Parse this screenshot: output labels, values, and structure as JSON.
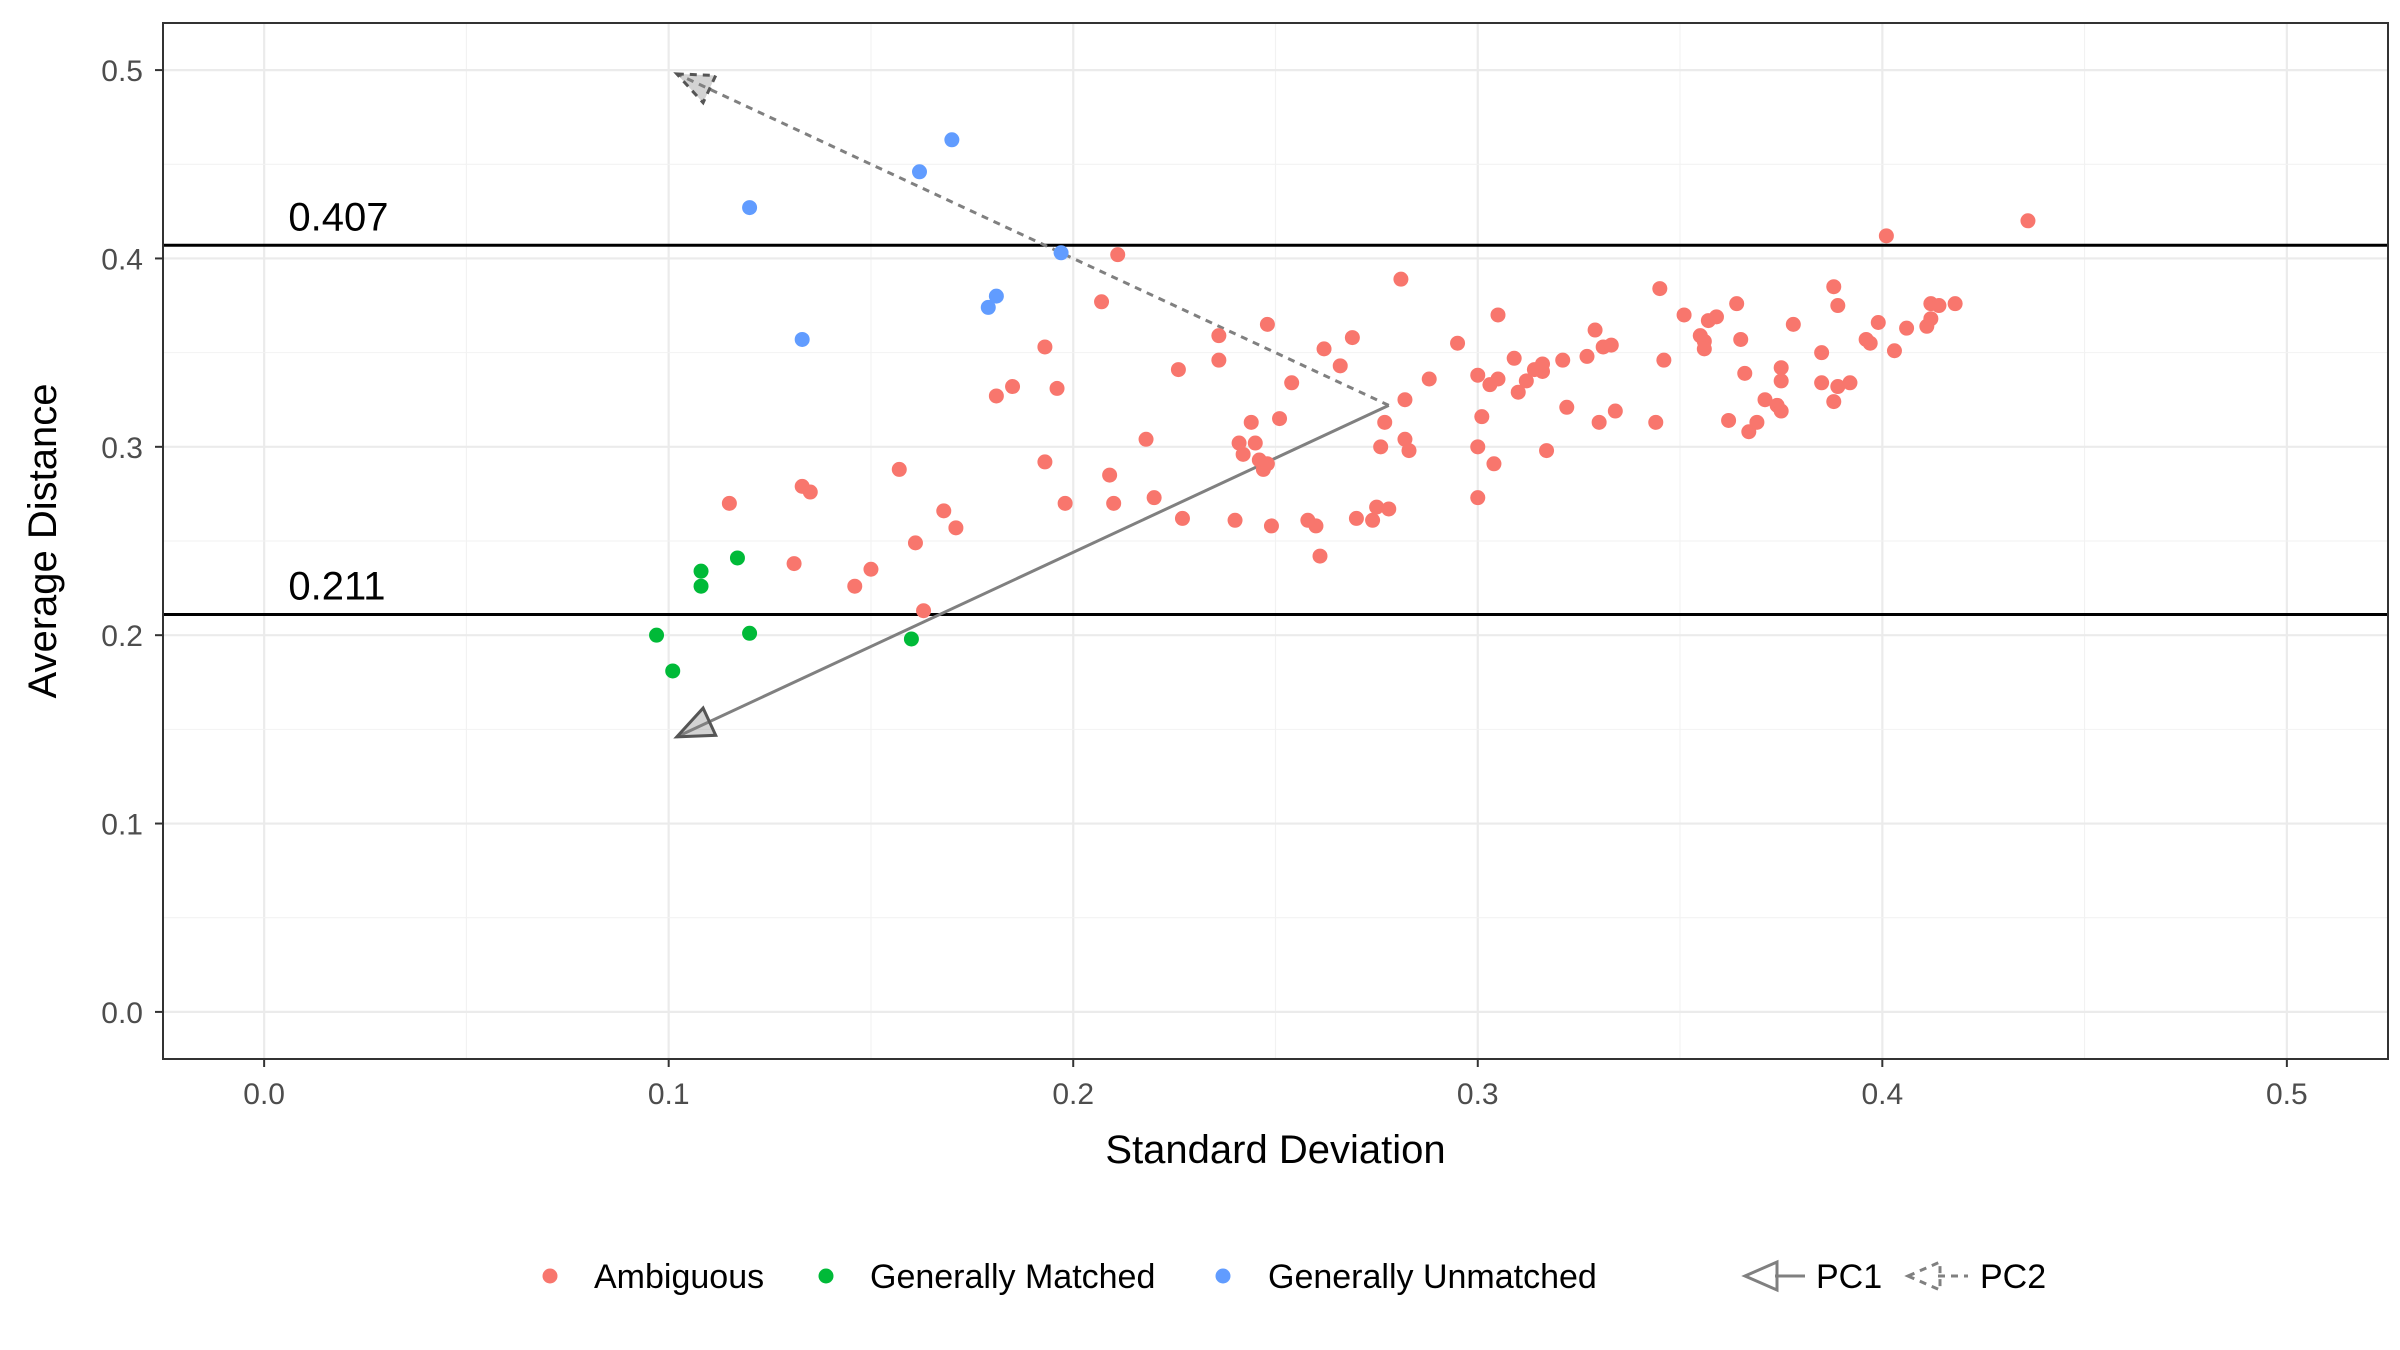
{
  "chart_data": {
    "type": "scatter",
    "xlabel": "Standard Deviation",
    "ylabel": "Average Distance",
    "xlim": [
      -0.025,
      0.525
    ],
    "ylim": [
      -0.025,
      0.525
    ],
    "x_ticks": [
      0.0,
      0.1,
      0.2,
      0.3,
      0.4,
      0.5
    ],
    "x_tick_labels": [
      "0.0",
      "0.1",
      "0.2",
      "0.3",
      "0.4",
      "0.5"
    ],
    "y_ticks": [
      0.0,
      0.1,
      0.2,
      0.3,
      0.4,
      0.5
    ],
    "y_tick_labels": [
      "0.0",
      "0.1",
      "0.2",
      "0.3",
      "0.4",
      "0.5"
    ],
    "grid": true,
    "legend_position": "bottom",
    "reference_lines": [
      {
        "y": 0.407,
        "label": "0.407"
      },
      {
        "y": 0.211,
        "label": "0.211"
      }
    ],
    "arrows": [
      {
        "name": "PC1",
        "style": "solid",
        "from": [
          0.278,
          0.322
        ],
        "to": [
          0.102,
          0.146
        ],
        "color": "#808080"
      },
      {
        "name": "PC2",
        "style": "dashed",
        "from": [
          0.278,
          0.322
        ],
        "to": [
          0.102,
          0.498
        ],
        "color": "#808080"
      }
    ],
    "series": [
      {
        "name": "Ambiguous",
        "color": "#F8766D",
        "points": [
          [
            0.115,
            0.27
          ],
          [
            0.131,
            0.238
          ],
          [
            0.133,
            0.279
          ],
          [
            0.135,
            0.276
          ],
          [
            0.146,
            0.226
          ],
          [
            0.15,
            0.235
          ],
          [
            0.157,
            0.288
          ],
          [
            0.161,
            0.249
          ],
          [
            0.163,
            0.213
          ],
          [
            0.168,
            0.266
          ],
          [
            0.171,
            0.257
          ],
          [
            0.181,
            0.327
          ],
          [
            0.185,
            0.332
          ],
          [
            0.193,
            0.353
          ],
          [
            0.193,
            0.292
          ],
          [
            0.196,
            0.331
          ],
          [
            0.198,
            0.27
          ],
          [
            0.207,
            0.377
          ],
          [
            0.209,
            0.285
          ],
          [
            0.21,
            0.27
          ],
          [
            0.211,
            0.402
          ],
          [
            0.218,
            0.304
          ],
          [
            0.22,
            0.273
          ],
          [
            0.226,
            0.341
          ],
          [
            0.227,
            0.262
          ],
          [
            0.236,
            0.359
          ],
          [
            0.236,
            0.346
          ],
          [
            0.24,
            0.261
          ],
          [
            0.241,
            0.302
          ],
          [
            0.242,
            0.296
          ],
          [
            0.244,
            0.313
          ],
          [
            0.245,
            0.302
          ],
          [
            0.246,
            0.293
          ],
          [
            0.247,
            0.288
          ],
          [
            0.248,
            0.291
          ],
          [
            0.248,
            0.365
          ],
          [
            0.249,
            0.258
          ],
          [
            0.251,
            0.315
          ],
          [
            0.254,
            0.334
          ],
          [
            0.258,
            0.261
          ],
          [
            0.26,
            0.258
          ],
          [
            0.261,
            0.242
          ],
          [
            0.262,
            0.352
          ],
          [
            0.266,
            0.343
          ],
          [
            0.269,
            0.358
          ],
          [
            0.27,
            0.262
          ],
          [
            0.274,
            0.261
          ],
          [
            0.275,
            0.268
          ],
          [
            0.276,
            0.3
          ],
          [
            0.277,
            0.313
          ],
          [
            0.278,
            0.267
          ],
          [
            0.281,
            0.389
          ],
          [
            0.282,
            0.304
          ],
          [
            0.283,
            0.298
          ],
          [
            0.282,
            0.325
          ],
          [
            0.288,
            0.336
          ],
          [
            0.295,
            0.355
          ],
          [
            0.3,
            0.338
          ],
          [
            0.3,
            0.3
          ],
          [
            0.301,
            0.316
          ],
          [
            0.3,
            0.273
          ],
          [
            0.303,
            0.333
          ],
          [
            0.304,
            0.291
          ],
          [
            0.305,
            0.336
          ],
          [
            0.305,
            0.37
          ],
          [
            0.309,
            0.347
          ],
          [
            0.31,
            0.329
          ],
          [
            0.312,
            0.335
          ],
          [
            0.314,
            0.341
          ],
          [
            0.316,
            0.34
          ],
          [
            0.316,
            0.344
          ],
          [
            0.317,
            0.298
          ],
          [
            0.321,
            0.346
          ],
          [
            0.322,
            0.321
          ],
          [
            0.327,
            0.348
          ],
          [
            0.329,
            0.362
          ],
          [
            0.33,
            0.313
          ],
          [
            0.331,
            0.353
          ],
          [
            0.333,
            0.354
          ],
          [
            0.334,
            0.319
          ],
          [
            0.344,
            0.313
          ],
          [
            0.345,
            0.384
          ],
          [
            0.346,
            0.346
          ],
          [
            0.351,
            0.37
          ],
          [
            0.355,
            0.359
          ],
          [
            0.356,
            0.356
          ],
          [
            0.356,
            0.352
          ],
          [
            0.357,
            0.367
          ],
          [
            0.359,
            0.369
          ],
          [
            0.362,
            0.314
          ],
          [
            0.364,
            0.376
          ],
          [
            0.365,
            0.357
          ],
          [
            0.366,
            0.339
          ],
          [
            0.367,
            0.308
          ],
          [
            0.369,
            0.313
          ],
          [
            0.371,
            0.325
          ],
          [
            0.374,
            0.322
          ],
          [
            0.375,
            0.319
          ],
          [
            0.375,
            0.342
          ],
          [
            0.375,
            0.335
          ],
          [
            0.378,
            0.365
          ],
          [
            0.385,
            0.334
          ],
          [
            0.385,
            0.35
          ],
          [
            0.388,
            0.385
          ],
          [
            0.388,
            0.324
          ],
          [
            0.389,
            0.332
          ],
          [
            0.389,
            0.375
          ],
          [
            0.392,
            0.334
          ],
          [
            0.396,
            0.357
          ],
          [
            0.397,
            0.355
          ],
          [
            0.399,
            0.366
          ],
          [
            0.401,
            0.412
          ],
          [
            0.403,
            0.351
          ],
          [
            0.406,
            0.363
          ],
          [
            0.411,
            0.364
          ],
          [
            0.412,
            0.368
          ],
          [
            0.412,
            0.376
          ],
          [
            0.414,
            0.375
          ],
          [
            0.418,
            0.376
          ],
          [
            0.436,
            0.42
          ]
        ]
      },
      {
        "name": "Generally Matched",
        "color": "#00BA38",
        "points": [
          [
            0.097,
            0.2
          ],
          [
            0.101,
            0.181
          ],
          [
            0.108,
            0.234
          ],
          [
            0.108,
            0.226
          ],
          [
            0.117,
            0.241
          ],
          [
            0.12,
            0.201
          ],
          [
            0.16,
            0.198
          ]
        ]
      },
      {
        "name": "Generally Unmatched",
        "color": "#619CFF",
        "points": [
          [
            0.12,
            0.427
          ],
          [
            0.133,
            0.357
          ],
          [
            0.162,
            0.446
          ],
          [
            0.17,
            0.463
          ],
          [
            0.179,
            0.374
          ],
          [
            0.181,
            0.38
          ],
          [
            0.197,
            0.403
          ]
        ]
      }
    ]
  }
}
